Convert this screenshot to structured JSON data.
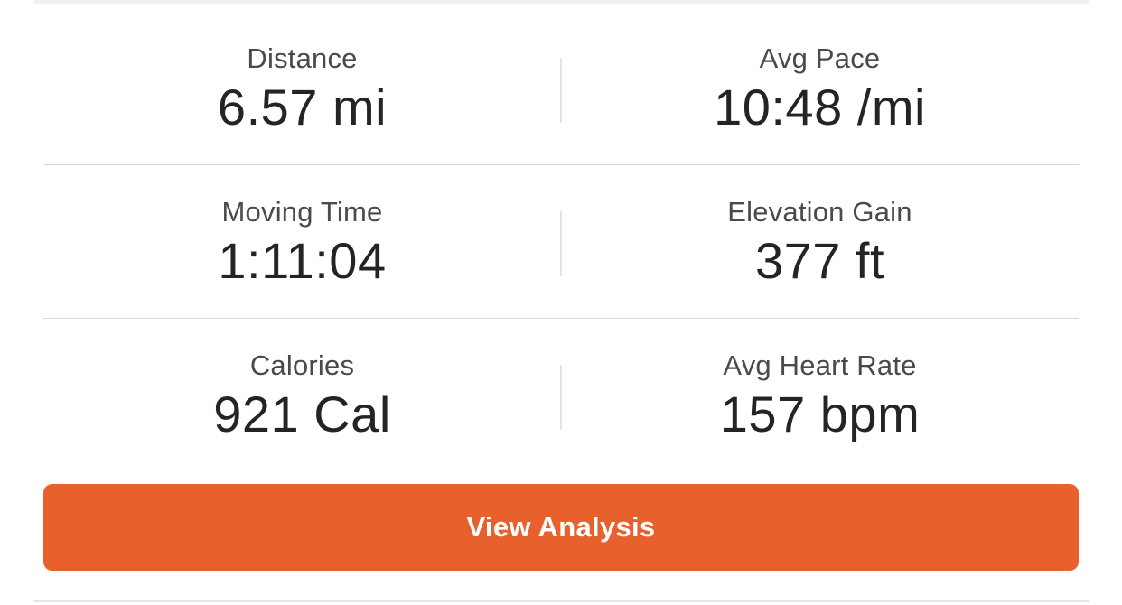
{
  "stats": [
    {
      "left": {
        "label": "Distance",
        "value": "6.57 mi"
      },
      "right": {
        "label": "Avg Pace",
        "value": "10:48 /mi"
      }
    },
    {
      "left": {
        "label": "Moving Time",
        "value": "1:11:04"
      },
      "right": {
        "label": "Elevation Gain",
        "value": "377 ft"
      }
    },
    {
      "left": {
        "label": "Calories",
        "value": "921 Cal"
      },
      "right": {
        "label": "Avg Heart Rate",
        "value": "157 bpm"
      }
    }
  ],
  "button": {
    "label": "View Analysis",
    "color": "#e8602c"
  }
}
